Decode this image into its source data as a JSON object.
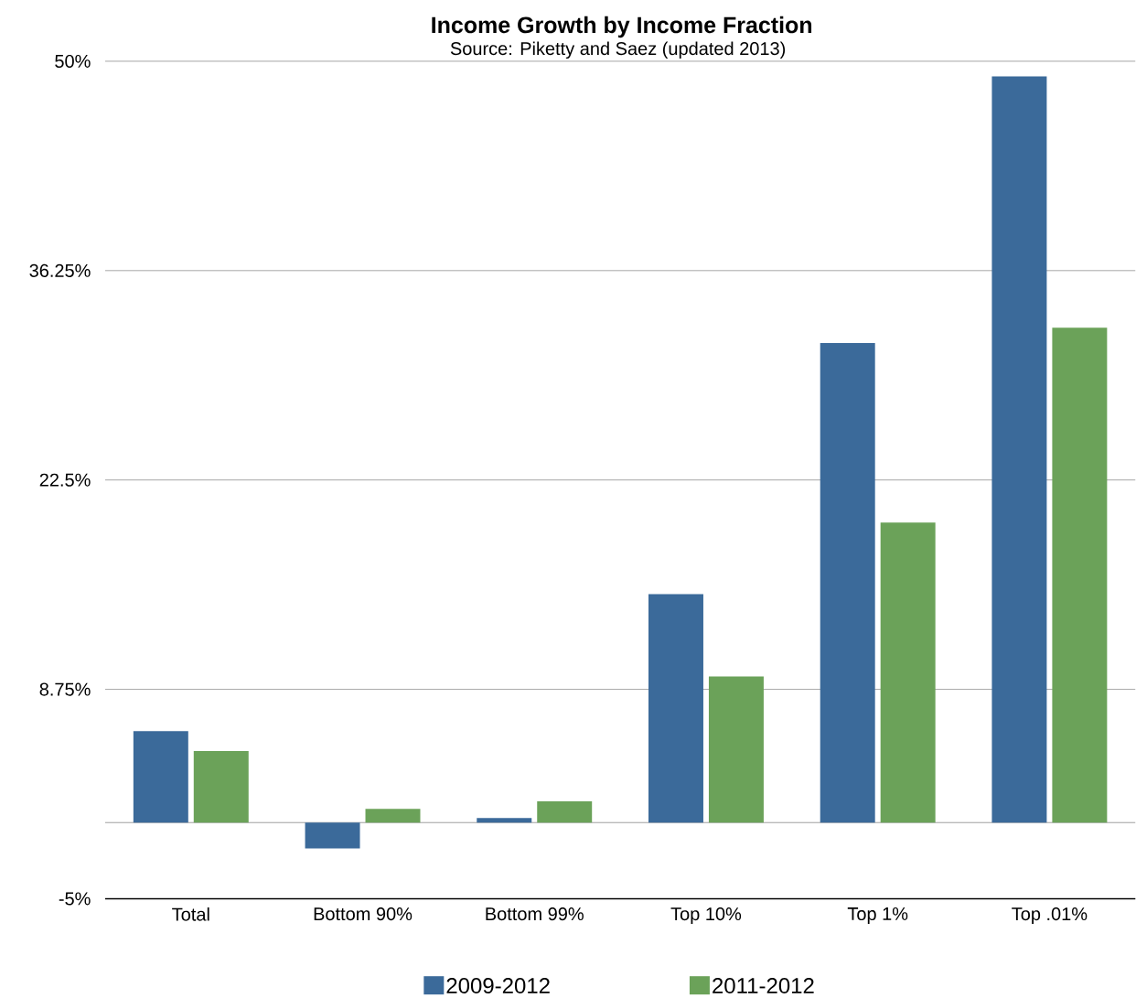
{
  "chart_data": {
    "type": "bar",
    "title": "Income Growth by Income Fraction",
    "subtitle": "Source: Piketty and Saez (updated 2013)",
    "categories": [
      "Total",
      "Bottom 90%",
      "Bottom 99%",
      "Top 10%",
      "Top 1%",
      "Top .01%"
    ],
    "series": [
      {
        "name": "2009-2012",
        "color": "#3b6a9a",
        "values": [
          6.0,
          -1.7,
          0.3,
          15.0,
          31.5,
          49.0
        ]
      },
      {
        "name": "2011-2012",
        "color": "#6ba259",
        "values": [
          4.7,
          0.9,
          1.4,
          9.6,
          19.7,
          32.5
        ]
      }
    ],
    "ylim": [
      -5,
      50
    ],
    "yticks": [
      {
        "value": -5,
        "label": "-5%"
      },
      {
        "value": 8.75,
        "label": "8.75%"
      },
      {
        "value": 22.5,
        "label": "22.5%"
      },
      {
        "value": 36.25,
        "label": "36.25%"
      },
      {
        "value": 50,
        "label": "50%"
      }
    ],
    "ref_lines": [
      {
        "axis": "y",
        "value": 0,
        "color": "#a0a0a0"
      }
    ],
    "grid": "y",
    "legend": "bottom"
  }
}
